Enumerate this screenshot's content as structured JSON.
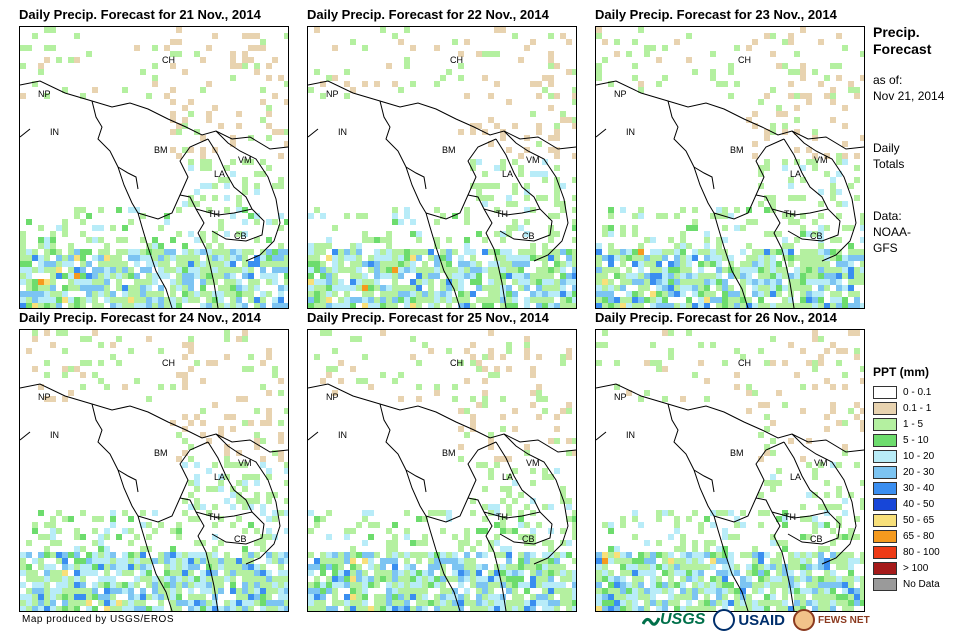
{
  "panels": [
    {
      "title": "Daily Precip. Forecast for 21 Nov., 2014",
      "seed": 11
    },
    {
      "title": "Daily Precip. Forecast for 22 Nov., 2014",
      "seed": 23
    },
    {
      "title": "Daily Precip. Forecast for 23 Nov., 2014",
      "seed": 37
    },
    {
      "title": "Daily Precip. Forecast for 24 Nov., 2014",
      "seed": 41
    },
    {
      "title": "Daily Precip. Forecast for 25 Nov., 2014",
      "seed": 53
    },
    {
      "title": "Daily Precip. Forecast for 26 Nov., 2014",
      "seed": 67
    }
  ],
  "country_labels": {
    "ch": "CH",
    "np": "NP",
    "in": "IN",
    "bm": "BM",
    "la": "LA",
    "vm": "VM",
    "th": "TH",
    "cb": "CB"
  },
  "side": {
    "title_line1": "Precip.",
    "title_line2": "Forecast",
    "asof_line1": "as of:",
    "asof_line2": "Nov 21, 2014",
    "totals_line1": "Daily",
    "totals_line2": "Totals",
    "data_line1": "Data:",
    "data_line2": "NOAA-",
    "data_line3": "GFS"
  },
  "legend": {
    "title": "PPT (mm)",
    "items": [
      {
        "label": "0 - 0.1",
        "color": "#ffffff"
      },
      {
        "label": "0.1 - 1",
        "color": "#e8d3b0"
      },
      {
        "label": "1 - 5",
        "color": "#b4f0a0"
      },
      {
        "label": "5 - 10",
        "color": "#6ddc6d"
      },
      {
        "label": "10 - 20",
        "color": "#b8ecf8"
      },
      {
        "label": "20 - 30",
        "color": "#7cc4f2"
      },
      {
        "label": "30 - 40",
        "color": "#3a8ef0"
      },
      {
        "label": "40 - 50",
        "color": "#1746d8"
      },
      {
        "label": "50 - 65",
        "color": "#f8e07a"
      },
      {
        "label": "65 - 80",
        "color": "#f59a1e"
      },
      {
        "label": "80 - 100",
        "color": "#ee3b16"
      },
      {
        "label": "> 100",
        "color": "#a51a1a"
      },
      {
        "label": "No Data",
        "color": "#9a9a9a"
      }
    ]
  },
  "footer": {
    "credit": "Map produced by USGS/EROS",
    "usgs": "USGS",
    "usaid": "USAID",
    "fews": "FEWS NET"
  }
}
